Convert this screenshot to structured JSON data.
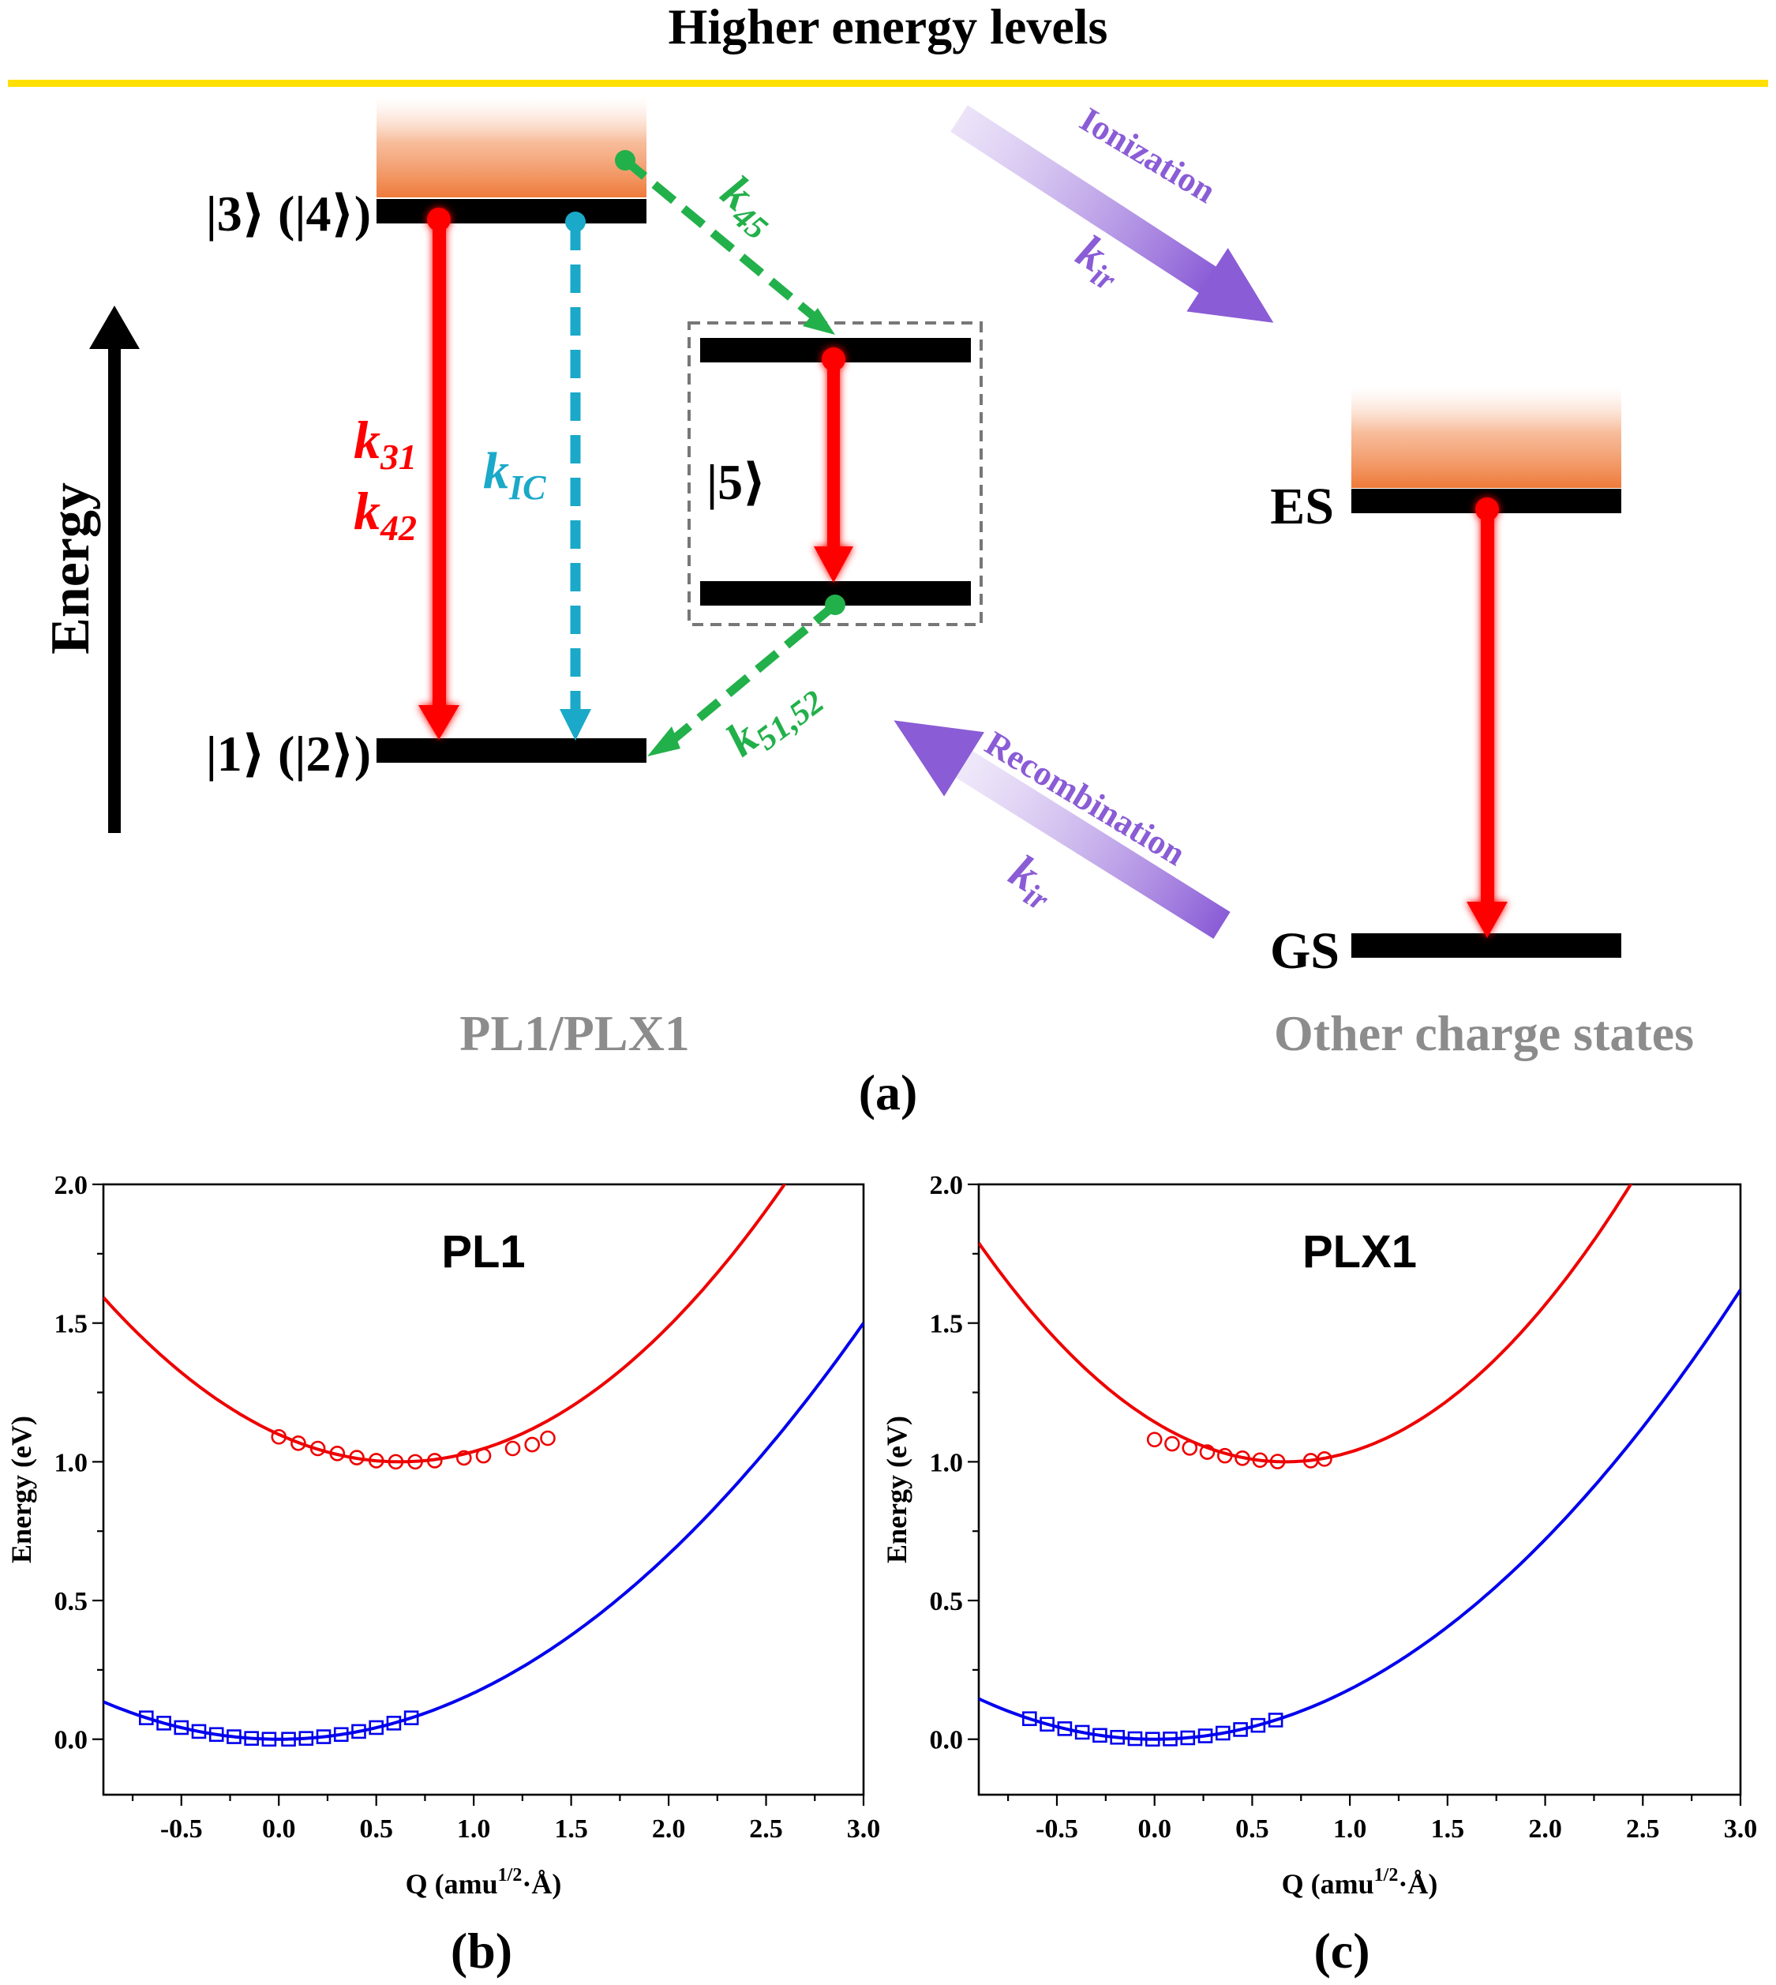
{
  "figure": {
    "header": "Higher energy levels",
    "panel_a": "(a)",
    "panel_b": "(b)",
    "panel_c": "(c)",
    "colors": {
      "header_line": "#ffe000",
      "radiative": "#ff0000",
      "internal_conversion": "#1aa9c8",
      "isc": "#22b04a",
      "ionization": "#8a5cd6",
      "label_gray": "#8c8c8c",
      "ground_curve": "#0000ee",
      "excited_curve": "#ee0000"
    }
  },
  "diagram": {
    "energy_axis_label": "Energy",
    "level_3_4": "|3⟩ (|4⟩)",
    "level_1_2": "|1⟩ (|2⟩)",
    "level_5": "|5⟩",
    "k31": {
      "k": "k",
      "sub": "31"
    },
    "k42": {
      "k": "k",
      "sub": "42"
    },
    "kIC": {
      "k": "k",
      "sub": "IC"
    },
    "k45": {
      "k": "k",
      "sub": "45"
    },
    "k5152": {
      "k": "k",
      "sub": "51,52"
    },
    "ionization": {
      "label": "Ionization",
      "k": "k",
      "sub": "ir"
    },
    "recombination": {
      "label": "Recombination",
      "k": "k",
      "sub": "ir"
    },
    "es_label": "ES",
    "gs_label": "GS",
    "left_group_label": "PL1/PLX1",
    "right_group_label": "Other charge states"
  },
  "chart_data": [
    {
      "type": "line",
      "title": "PL1",
      "xlabel_main": "Q (amu",
      "xlabel_sup": "1/2",
      "xlabel_end": "·Å)",
      "ylabel": "Energy (eV)",
      "xlim": [
        -0.9,
        3.0
      ],
      "ylim": [
        -0.2,
        2.0
      ],
      "xticks": [
        -0.5,
        0.0,
        0.5,
        1.0,
        1.5,
        2.0,
        2.5,
        3.0
      ],
      "xtick_labels": [
        "-0.5",
        "0.0",
        "0.5",
        "1.0",
        "1.5",
        "2.0",
        "2.5",
        "3.0"
      ],
      "yticks": [
        0.0,
        0.5,
        1.0,
        1.5,
        2.0
      ],
      "ytick_labels": [
        "0.0",
        "0.5",
        "1.0",
        "1.5",
        "2.0"
      ],
      "series": [
        {
          "name": "ground-state fit",
          "kind": "parabola",
          "color": "#0000ee",
          "a": 0.1667,
          "q0": 0.0,
          "e0": 0.0
        },
        {
          "name": "excited-state fit",
          "kind": "parabola",
          "color": "#ee0000",
          "a": 0.2565,
          "q0": 0.62,
          "e0": 1.0
        },
        {
          "name": "ground-state points",
          "kind": "points",
          "marker": "square",
          "color": "#0000ee",
          "x": [
            -0.68,
            -0.59,
            -0.5,
            -0.41,
            -0.32,
            -0.23,
            -0.14,
            -0.05,
            0.05,
            0.14,
            0.23,
            0.32,
            0.41,
            0.5,
            0.59,
            0.68
          ],
          "y": [
            0.077,
            0.058,
            0.042,
            0.028,
            0.017,
            0.009,
            0.003,
            0.0,
            0.0,
            0.003,
            0.009,
            0.017,
            0.028,
            0.042,
            0.058,
            0.077
          ]
        },
        {
          "name": "excited-state points",
          "kind": "points",
          "marker": "circle",
          "color": "#ee0000",
          "x": [
            0.0,
            0.1,
            0.2,
            0.3,
            0.4,
            0.5,
            0.6,
            0.7,
            0.8,
            0.95,
            1.05,
            1.2,
            1.3,
            1.38
          ],
          "y": [
            1.09,
            1.067,
            1.048,
            1.03,
            1.015,
            1.004,
            1.0,
            1.0,
            1.004,
            1.014,
            1.022,
            1.048,
            1.062,
            1.085
          ]
        }
      ]
    },
    {
      "type": "line",
      "title": "PLX1",
      "xlabel_main": "Q (amu",
      "xlabel_sup": "1/2",
      "xlabel_end": "·Å)",
      "ylabel": "Energy (eV)",
      "xlim": [
        -0.9,
        3.0
      ],
      "ylim": [
        -0.2,
        2.0
      ],
      "xticks": [
        -0.5,
        0.0,
        0.5,
        1.0,
        1.5,
        2.0,
        2.5,
        3.0
      ],
      "xtick_labels": [
        "-0.5",
        "0.0",
        "0.5",
        "1.0",
        "1.5",
        "2.0",
        "2.5",
        "3.0"
      ],
      "yticks": [
        0.0,
        0.5,
        1.0,
        1.5,
        2.0
      ],
      "ytick_labels": [
        "0.0",
        "0.5",
        "1.0",
        "1.5",
        "2.0"
      ],
      "series": [
        {
          "name": "ground-state fit",
          "kind": "parabola",
          "color": "#0000ee",
          "a": 0.18,
          "q0": 0.0,
          "e0": 0.0
        },
        {
          "name": "excited-state fit",
          "kind": "parabola",
          "color": "#ee0000",
          "a": 0.32,
          "q0": 0.67,
          "e0": 1.0
        },
        {
          "name": "ground-state points",
          "kind": "points",
          "marker": "square",
          "color": "#0000ee",
          "x": [
            -0.64,
            -0.55,
            -0.46,
            -0.37,
            -0.28,
            -0.19,
            -0.1,
            -0.01,
            0.08,
            0.17,
            0.26,
            0.35,
            0.44,
            0.53,
            0.62
          ],
          "y": [
            0.074,
            0.054,
            0.038,
            0.025,
            0.014,
            0.007,
            0.002,
            0.0,
            0.001,
            0.005,
            0.012,
            0.022,
            0.035,
            0.05,
            0.069
          ]
        },
        {
          "name": "excited-state points",
          "kind": "points",
          "marker": "circle",
          "color": "#ee0000",
          "x": [
            0.0,
            0.09,
            0.18,
            0.27,
            0.36,
            0.45,
            0.54,
            0.63,
            0.8,
            0.87
          ],
          "y": [
            1.08,
            1.065,
            1.05,
            1.035,
            1.022,
            1.013,
            1.006,
            1.001,
            1.004,
            1.01
          ]
        }
      ]
    }
  ]
}
